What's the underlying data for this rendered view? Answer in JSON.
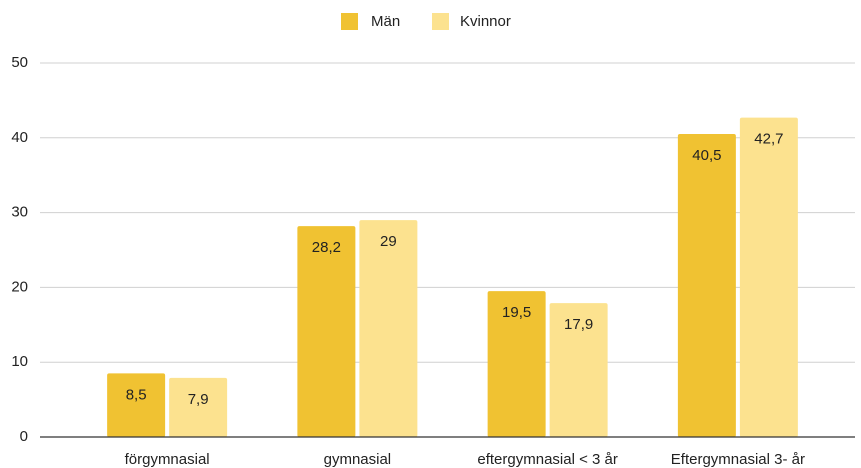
{
  "chart_data": {
    "type": "bar",
    "categories": [
      "förgymnasial",
      "gymnasial",
      "eftergymnasial < 3 år",
      "Eftergymnasial 3- år"
    ],
    "series": [
      {
        "name": "Män",
        "color": "#f0c232",
        "values": [
          8.5,
          28.2,
          19.5,
          40.5
        ],
        "value_labels": [
          "8,5",
          "28,2",
          "19,5",
          "40,5"
        ]
      },
      {
        "name": "Kvinnor",
        "color": "#fce28f",
        "values": [
          7.9,
          29,
          17.9,
          42.7
        ],
        "value_labels": [
          "7,9",
          "29",
          "17,9",
          "42,7"
        ]
      }
    ],
    "ylim": [
      0,
      50
    ],
    "yticks": [
      0,
      10,
      20,
      30,
      40,
      50
    ],
    "grid": true,
    "legend": "top"
  }
}
